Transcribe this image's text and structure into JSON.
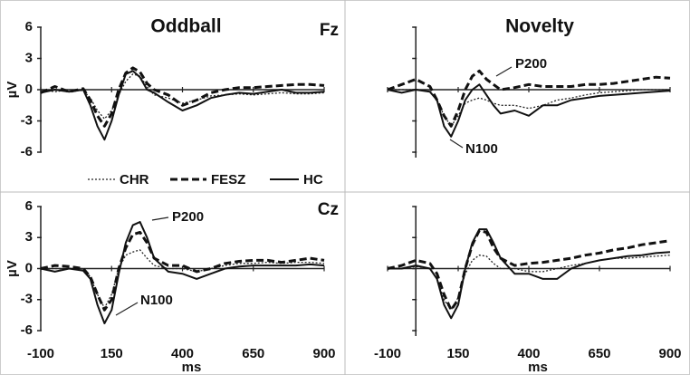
{
  "chart_data": [
    {
      "type": "line",
      "title": "Oddball",
      "electrode": "Fz",
      "ylabel": "µV",
      "x": [
        -100,
        -50,
        0,
        50,
        75,
        100,
        125,
        150,
        175,
        200,
        225,
        250,
        275,
        300,
        350,
        400,
        450,
        500,
        550,
        600,
        650,
        700,
        750,
        800,
        850,
        900
      ],
      "xlim": [
        -100,
        900
      ],
      "xticks": [
        -100,
        150,
        400,
        650,
        900
      ],
      "ylim": [
        -6,
        6
      ],
      "yticks": [
        6,
        3,
        0,
        -3,
        -6
      ],
      "series": [
        {
          "name": "CHR",
          "color": "#222",
          "style": "dotted",
          "values": [
            0,
            -0.2,
            0,
            -0.1,
            -0.8,
            -2,
            -2.8,
            -2,
            -0.5,
            0.8,
            1.5,
            1.3,
            0.3,
            -0.5,
            -0.8,
            -1.3,
            -1,
            -0.6,
            -0.5,
            -0.4,
            -0.5,
            -0.4,
            -0.3,
            -0.4,
            -0.4,
            -0.3
          ]
        },
        {
          "name": "FESZ",
          "color": "#111",
          "style": "dashed",
          "values": [
            -0.3,
            0.3,
            -0.2,
            0.1,
            -1,
            -2.5,
            -3.5,
            -2.3,
            0,
            1.6,
            2.1,
            1.7,
            0.6,
            0,
            -0.5,
            -1.5,
            -1,
            -0.3,
            0,
            0.2,
            0.2,
            0.3,
            0.4,
            0.5,
            0.5,
            0.4
          ]
        },
        {
          "name": "HC",
          "color": "#111",
          "style": "solid",
          "values": [
            -0.3,
            0,
            -0.2,
            0,
            -1.5,
            -3.5,
            -4.8,
            -3,
            -0.5,
            1.5,
            1.8,
            1.2,
            0,
            -0.3,
            -1.2,
            -2,
            -1.5,
            -0.8,
            -0.5,
            -0.3,
            -0.4,
            -0.2,
            0,
            -0.3,
            -0.3,
            -0.2
          ]
        }
      ]
    },
    {
      "type": "line",
      "title": "Novelty",
      "x": [
        -100,
        -50,
        0,
        50,
        75,
        100,
        125,
        150,
        175,
        200,
        225,
        250,
        275,
        300,
        350,
        400,
        450,
        500,
        550,
        600,
        650,
        700,
        750,
        800,
        850,
        900
      ],
      "xlim": [
        -100,
        900
      ],
      "xticks": [
        -100,
        150,
        400,
        650,
        900
      ],
      "ylim": [
        -6,
        6
      ],
      "yticks": [
        6,
        3,
        0,
        -3,
        -6
      ],
      "annotations": [
        "P200",
        "N100"
      ],
      "series": [
        {
          "color": "#222",
          "style": "dotted",
          "values": [
            0,
            0,
            0,
            -0.2,
            -1,
            -2.5,
            -3.5,
            -2.5,
            -1.3,
            -1,
            -0.8,
            -1,
            -1.3,
            -1.5,
            -1.5,
            -1.8,
            -1.5,
            -1,
            -0.8,
            -0.5,
            -0.3,
            -0.2,
            -0.1,
            0,
            0,
            0
          ]
        },
        {
          "color": "#111",
          "style": "dashed",
          "values": [
            0,
            0.5,
            1,
            0.3,
            -1,
            -2.5,
            -3.5,
            -2,
            0,
            1.3,
            1.8,
            1,
            0.5,
            0,
            0.2,
            0.5,
            0.3,
            0.3,
            0.3,
            0.5,
            0.5,
            0.6,
            0.8,
            1,
            1.2,
            1.1
          ]
        },
        {
          "color": "#111",
          "style": "solid",
          "values": [
            0,
            -0.3,
            0,
            -0.2,
            -1,
            -3.5,
            -4.5,
            -3,
            -1,
            0,
            0.5,
            -0.5,
            -1.5,
            -2.3,
            -2,
            -2.5,
            -1.5,
            -1.5,
            -1,
            -0.8,
            -0.6,
            -0.5,
            -0.4,
            -0.3,
            -0.2,
            -0.1
          ]
        }
      ]
    },
    {
      "type": "line",
      "electrode": "Cz",
      "ylabel": "µV",
      "xlabel": "ms",
      "x": [
        -100,
        -50,
        0,
        50,
        75,
        100,
        125,
        150,
        175,
        200,
        225,
        250,
        275,
        300,
        350,
        400,
        450,
        500,
        550,
        600,
        650,
        700,
        750,
        800,
        850,
        900
      ],
      "xlim": [
        -100,
        900
      ],
      "xticks": [
        -100,
        150,
        400,
        650,
        900
      ],
      "ylim": [
        -6,
        6
      ],
      "yticks": [
        6,
        3,
        0,
        -3,
        -6
      ],
      "annotations": [
        "P200",
        "N100"
      ],
      "series": [
        {
          "color": "#222",
          "style": "dotted",
          "values": [
            0,
            0,
            0,
            0,
            -0.8,
            -2.5,
            -3.8,
            -2.5,
            0,
            1.3,
            1.6,
            1.8,
            1,
            0.3,
            0,
            0,
            -0.3,
            0,
            0.3,
            0.5,
            0.5,
            0.6,
            0.5,
            0.6,
            0.6,
            0.5
          ]
        },
        {
          "color": "#111",
          "style": "dashed",
          "values": [
            0,
            0.3,
            0.2,
            0,
            -0.8,
            -2.5,
            -4,
            -3,
            0,
            2,
            3.3,
            3.5,
            2.5,
            1,
            0.3,
            0.3,
            -0.3,
            0,
            0.5,
            0.7,
            0.8,
            0.8,
            0.6,
            0.8,
            1,
            0.8
          ]
        },
        {
          "color": "#111",
          "style": "solid",
          "values": [
            0,
            -0.3,
            0,
            -0.2,
            -1,
            -3.5,
            -5.3,
            -4,
            -0.5,
            2.5,
            4.2,
            4.5,
            3,
            1,
            -0.3,
            -0.5,
            -1,
            -0.5,
            0,
            0.2,
            0.3,
            0.3,
            0.3,
            0.3,
            0.4,
            0.3
          ]
        }
      ]
    },
    {
      "type": "line",
      "xlabel": "ms",
      "x": [
        -100,
        -50,
        0,
        50,
        75,
        100,
        125,
        150,
        175,
        200,
        225,
        250,
        275,
        300,
        350,
        400,
        450,
        500,
        550,
        600,
        650,
        700,
        750,
        800,
        850,
        900
      ],
      "xlim": [
        -100,
        900
      ],
      "xticks": [
        -100,
        150,
        400,
        650,
        900
      ],
      "ylim": [
        -6,
        6
      ],
      "yticks": [
        6,
        3,
        0,
        -3,
        -6
      ],
      "series": [
        {
          "color": "#222",
          "style": "dotted",
          "values": [
            0,
            0,
            0.2,
            0,
            -1,
            -3,
            -4,
            -2.8,
            -0.5,
            0.8,
            1.3,
            1.2,
            0.5,
            0,
            0,
            -0.3,
            -0.3,
            0,
            0.3,
            0.5,
            0.8,
            1,
            1,
            1.1,
            1.2,
            1.3
          ]
        },
        {
          "color": "#111",
          "style": "dashed",
          "values": [
            0,
            0.3,
            0.8,
            0.5,
            -0.5,
            -2.5,
            -4,
            -3,
            0,
            2.3,
            3.7,
            3.5,
            2,
            1,
            0.3,
            0.5,
            0.6,
            0.8,
            1,
            1.3,
            1.5,
            1.8,
            2,
            2.3,
            2.5,
            2.7
          ]
        },
        {
          "color": "#111",
          "style": "solid",
          "values": [
            0,
            0,
            0.3,
            0,
            -1,
            -3.5,
            -4.8,
            -3.5,
            0,
            2.5,
            3.8,
            3.8,
            2.5,
            1,
            -0.5,
            -0.5,
            -1,
            -1,
            0,
            0.5,
            0.8,
            1,
            1.2,
            1.3,
            1.5,
            1.6
          ]
        }
      ]
    }
  ]
}
